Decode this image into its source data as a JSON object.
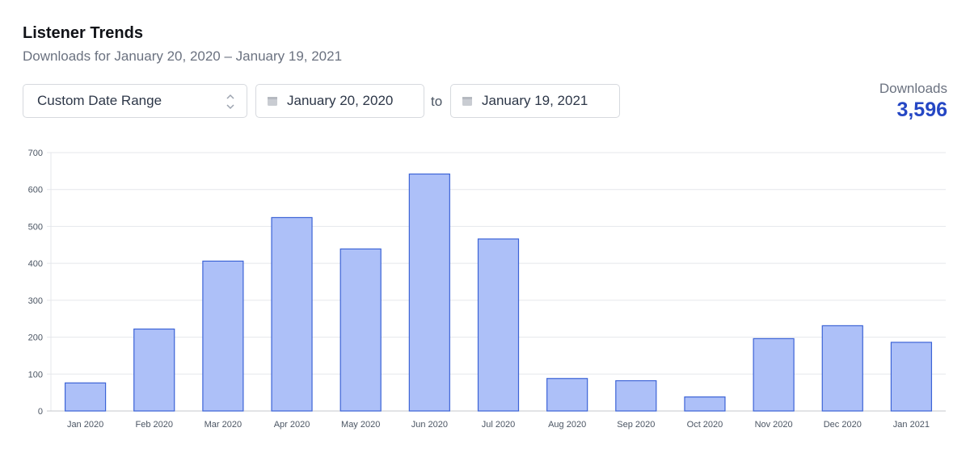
{
  "header": {
    "title": "Listener Trends",
    "subtitle": "Downloads for January 20, 2020 – January 19, 2021"
  },
  "controls": {
    "range_select": {
      "value": "Custom Date Range",
      "icon": "chevron-up-down-icon"
    },
    "start_date": {
      "value": "January 20, 2020",
      "icon": "calendar-icon"
    },
    "separator": "to",
    "end_date": {
      "value": "January 19, 2021",
      "icon": "calendar-icon"
    }
  },
  "summary": {
    "label": "Downloads",
    "value": "3,596",
    "color": "#2547c4"
  },
  "colors": {
    "bar_fill": "#adc0f8",
    "bar_stroke": "#3c63d6",
    "grid": "#e5e7eb"
  },
  "chart_data": {
    "type": "bar",
    "title": "",
    "xlabel": "",
    "ylabel": "",
    "ylim": [
      0,
      700
    ],
    "yticks": [
      0,
      100,
      200,
      300,
      400,
      500,
      600,
      700
    ],
    "grid": true,
    "legend": "none",
    "categories": [
      "Jan 2020",
      "Feb 2020",
      "Mar 2020",
      "Apr 2020",
      "May 2020",
      "Jun 2020",
      "Jul 2020",
      "Aug 2020",
      "Sep 2020",
      "Oct 2020",
      "Nov 2020",
      "Dec 2020",
      "Jan 2021"
    ],
    "series": [
      {
        "name": "Downloads",
        "values": [
          76,
          222,
          406,
          524,
          439,
          642,
          466,
          88,
          82,
          38,
          196,
          231,
          186
        ]
      }
    ]
  }
}
